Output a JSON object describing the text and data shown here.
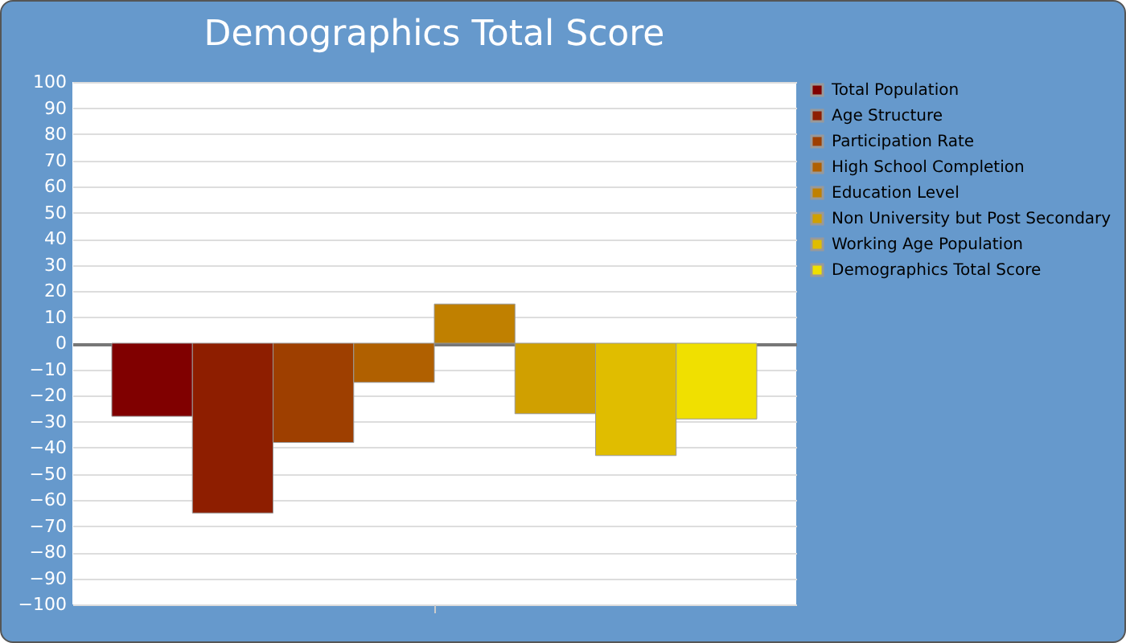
{
  "chart_data": {
    "type": "bar",
    "title": "Demographics Total Score",
    "categories": [
      null
    ],
    "series": [
      {
        "name": "Total Population",
        "color": "#800000",
        "values": [
          -28
        ]
      },
      {
        "name": "Age Structure",
        "color": "#8e1e00",
        "values": [
          -65
        ]
      },
      {
        "name": "Participation Rate",
        "color": "#9e3f00",
        "values": [
          -38
        ]
      },
      {
        "name": "High School Completion",
        "color": "#b06000",
        "values": [
          -15
        ]
      },
      {
        "name": "Education Level",
        "color": "#c08000",
        "values": [
          15
        ]
      },
      {
        "name": "Non University but Post Secondary",
        "color": "#d0a000",
        "values": [
          -27
        ]
      },
      {
        "name": "Working Age Population",
        "color": "#e0bd00",
        "values": [
          -43
        ]
      },
      {
        "name": "Demographics Total Score",
        "color": "#f0e000",
        "values": [
          -29
        ]
      }
    ],
    "ylim": [
      -100,
      100
    ],
    "yticks": [
      -100,
      -90,
      -80,
      -70,
      -60,
      -50,
      -40,
      -30,
      -20,
      -10,
      0,
      10,
      20,
      30,
      40,
      50,
      60,
      70,
      80,
      90,
      100
    ],
    "grid": "y",
    "legend": "right",
    "tick_labels": "y"
  }
}
